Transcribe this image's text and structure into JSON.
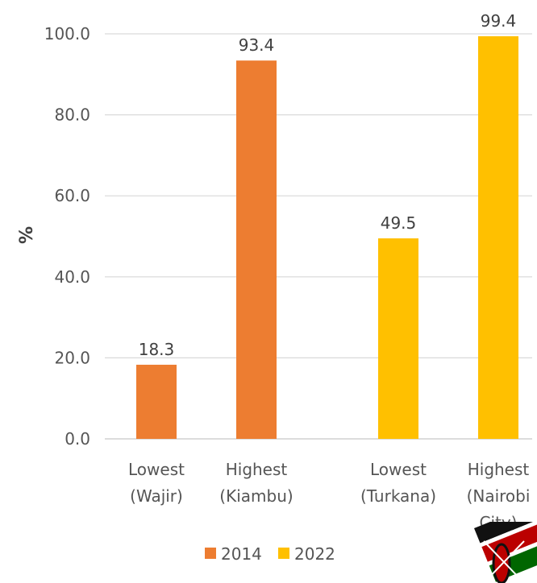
{
  "chart_data": {
    "type": "bar",
    "ylabel": "%",
    "ylim": [
      0,
      100
    ],
    "yticks": [
      "0.0",
      "20.0",
      "40.0",
      "60.0",
      "80.0",
      "100.0"
    ],
    "categories": [
      [
        "Lowest",
        "(Wajir)"
      ],
      [
        "Highest",
        "(Kiambu)"
      ],
      [
        "Lowest",
        "(Turkana)"
      ],
      [
        "Highest",
        "(Nairobi",
        "City)"
      ]
    ],
    "bars": [
      {
        "category": 0,
        "series": 0,
        "value": 18.3,
        "label": "18.3"
      },
      {
        "category": 1,
        "series": 0,
        "value": 93.4,
        "label": "93.4"
      },
      {
        "category": 2,
        "series": 1,
        "value": 49.5,
        "label": "49.5"
      },
      {
        "category": 3,
        "series": 1,
        "value": 99.4,
        "label": "99.4"
      }
    ],
    "series": [
      {
        "name": "2014",
        "color": "#ED7D31"
      },
      {
        "name": "2022",
        "color": "#FFC000"
      }
    ],
    "grid": true,
    "legend_position": "bottom"
  },
  "logo_icon": "kenya-flag-emblem-icon"
}
